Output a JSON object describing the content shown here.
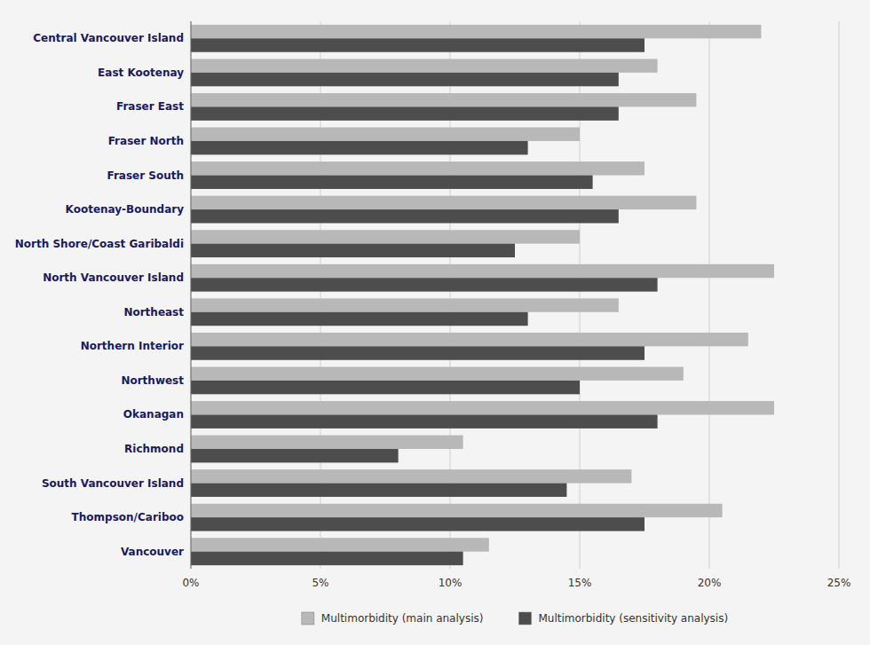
{
  "chart_data": {
    "type": "bar",
    "orientation": "horizontal",
    "categories": [
      "Central Vancouver Island",
      "East Kootenay",
      "Fraser East",
      "Fraser North",
      "Fraser South",
      "Kootenay-Boundary",
      "North Shore/Coast Garibaldi",
      "North Vancouver Island",
      "Northeast",
      "Northern Interior",
      "Northwest",
      "Okanagan",
      "Richmond",
      "South Vancouver Island",
      "Thompson/Cariboo",
      "Vancouver"
    ],
    "series": [
      {
        "name": "Multimorbidity (main analysis)",
        "color": "#b8b8b8",
        "values": [
          22.0,
          18.0,
          19.5,
          15.0,
          17.5,
          19.5,
          15.0,
          22.5,
          16.5,
          21.5,
          19.0,
          22.5,
          10.5,
          17.0,
          20.5,
          11.5
        ]
      },
      {
        "name": "Multimorbidity (sensitivity analysis)",
        "color": "#4d4d4d",
        "values": [
          17.5,
          16.5,
          16.5,
          13.0,
          15.5,
          16.5,
          12.5,
          18.0,
          13.0,
          17.5,
          15.0,
          18.0,
          8.0,
          14.5,
          17.5,
          10.5
        ]
      }
    ],
    "xlim": [
      0,
      25
    ],
    "xticks": [
      {
        "value": 0,
        "label": "0%"
      },
      {
        "value": 5,
        "label": "5%"
      },
      {
        "value": 10,
        "label": "10%"
      },
      {
        "value": 15,
        "label": "15%"
      },
      {
        "value": 20,
        "label": "20%"
      },
      {
        "value": 25,
        "label": "25%"
      }
    ],
    "grid": true,
    "legend": "bottom"
  }
}
